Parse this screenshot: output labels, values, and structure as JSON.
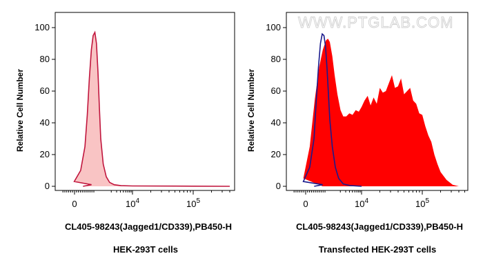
{
  "watermark": "WWW.PTGLAB.COM",
  "colors": {
    "control_fill": "#f9c4c4",
    "control_line": "#c0143c",
    "sample_fill": "#ff0000",
    "isotype_line": "#1a1a8c"
  },
  "chart_data": [
    {
      "type": "area",
      "title": "",
      "xlabel": "CL405-98243(Jagged1/CD339),PB450-H",
      "ylabel": "Relative Cell Number",
      "caption": "HEK-293T cells",
      "x_scale": "biexponential",
      "xlim": [
        -300,
        400000
      ],
      "ylim": [
        0,
        100
      ],
      "grid": false,
      "y_ticks": [
        0,
        20,
        40,
        60,
        80,
        100
      ],
      "x_ticks": [
        {
          "value": 0,
          "base": "0",
          "exp": ""
        },
        {
          "value": 10000,
          "base": "10",
          "exp": "4"
        },
        {
          "value": 100000,
          "base": "10",
          "exp": "5"
        }
      ],
      "series": [
        {
          "style": "filled-light",
          "x": [
            400,
            800,
            1100,
            1400,
            1650,
            1800,
            1950,
            2100,
            2250,
            2400,
            2550,
            2700,
            2850,
            3000,
            3300,
            3700,
            4200,
            5000,
            6500,
            10000,
            100000,
            400000
          ],
          "y": [
            0,
            1,
            3,
            10,
            25,
            45,
            68,
            86,
            95,
            97,
            90,
            72,
            50,
            30,
            14,
            6,
            2.5,
            1,
            0.4,
            0.2,
            0.1,
            0
          ]
        }
      ]
    },
    {
      "type": "area",
      "title": "",
      "xlabel": "CL405-98243(Jagged1/CD339),PB450-H",
      "ylabel": "Relative Cell Number",
      "caption": "Transfected HEK-293T cells",
      "x_scale": "biexponential",
      "xlim": [
        -300,
        400000
      ],
      "ylim": [
        0,
        100
      ],
      "grid": false,
      "y_ticks": [
        0,
        20,
        40,
        60,
        80,
        100
      ],
      "x_ticks": [
        {
          "value": 0,
          "base": "0",
          "exp": ""
        },
        {
          "value": 10000,
          "base": "10",
          "exp": "4"
        },
        {
          "value": 100000,
          "base": "10",
          "exp": "5"
        }
      ],
      "series": [
        {
          "style": "filled",
          "x": [
            800,
            1100,
            1400,
            1700,
            2000,
            2300,
            2600,
            2800,
            3000,
            3300,
            3600,
            4000,
            4500,
            5000,
            5600,
            6300,
            7100,
            8000,
            9000,
            10000,
            11200,
            12600,
            14100,
            15800,
            17800,
            20000,
            22400,
            25100,
            28200,
            31600,
            35500,
            39800,
            44700,
            50100,
            56200,
            63100,
            70800,
            79400,
            89100,
            100000,
            112000,
            126000,
            141000,
            158000,
            178000,
            200000,
            251000,
            316000,
            400000
          ],
          "y": [
            0,
            5,
            25,
            55,
            75,
            86,
            92,
            93,
            91,
            82,
            70,
            58,
            48,
            44,
            44,
            46,
            45,
            48,
            47,
            50,
            54,
            57,
            51,
            56,
            52,
            62,
            59,
            60,
            65,
            70,
            62,
            63,
            68,
            58,
            60,
            62,
            54,
            52,
            46,
            45,
            38,
            32,
            28,
            20,
            14,
            9,
            4,
            1,
            0
          ]
        },
        {
          "style": "line",
          "x": [
            400,
            800,
            1100,
            1400,
            1650,
            1800,
            1950,
            2100,
            2250,
            2400,
            2550,
            2700,
            2850,
            3000,
            3300,
            3700,
            4200,
            5000,
            6500,
            10000
          ],
          "y": [
            0,
            1,
            3,
            12,
            30,
            55,
            75,
            90,
            96,
            95,
            88,
            74,
            58,
            42,
            25,
            12,
            5,
            1.5,
            0.5,
            0
          ]
        }
      ]
    }
  ]
}
